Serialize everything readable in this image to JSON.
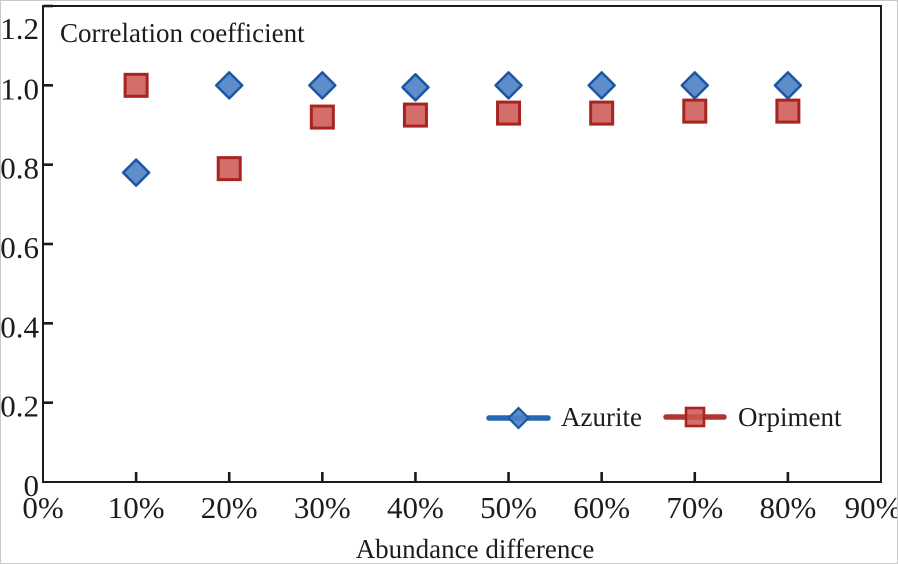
{
  "chart_data": {
    "type": "scatter",
    "title": "Correlation coefficient",
    "xlabel": "Abundance difference",
    "ylabel": "Correlation coefficient",
    "xlim": [
      0,
      90
    ],
    "ylim": [
      0,
      1.2
    ],
    "grid": false,
    "legend_position": "inside bottom-right",
    "x_unit": "%",
    "x": [
      10,
      20,
      30,
      40,
      50,
      60,
      70,
      80
    ],
    "series": [
      {
        "name": "Azurite",
        "marker": "diamond",
        "fill": "#4d82c4",
        "stroke": "#1d55a5",
        "line": "#2767b1",
        "values": [
          0.78,
          1.0,
          1.0,
          0.995,
          1.0,
          1.0,
          1.0,
          1.0
        ]
      },
      {
        "name": "Orpiment",
        "marker": "square",
        "fill": "#cd5551",
        "stroke": "#a82420",
        "line": "#b33530",
        "values": [
          1.0,
          0.79,
          0.92,
          0.925,
          0.93,
          0.93,
          0.935,
          0.935
        ]
      }
    ],
    "x_ticks": {
      "values": [
        0,
        10,
        20,
        30,
        40,
        50,
        60,
        70,
        80,
        90
      ],
      "labels": [
        "0%",
        "10%",
        "20%",
        "30%",
        "40%",
        "50%",
        "60%",
        "70%",
        "80%",
        "90%"
      ]
    },
    "y_ticks": {
      "values": [
        0,
        0.2,
        0.4,
        0.6,
        0.8,
        1.0,
        1.2
      ],
      "labels": [
        "0",
        "0.2",
        "0.4",
        "0.6",
        "0.8",
        "1.0",
        "1.2"
      ]
    },
    "axis_color": "#1a1a1a",
    "text_color": "#1c1c1c"
  }
}
